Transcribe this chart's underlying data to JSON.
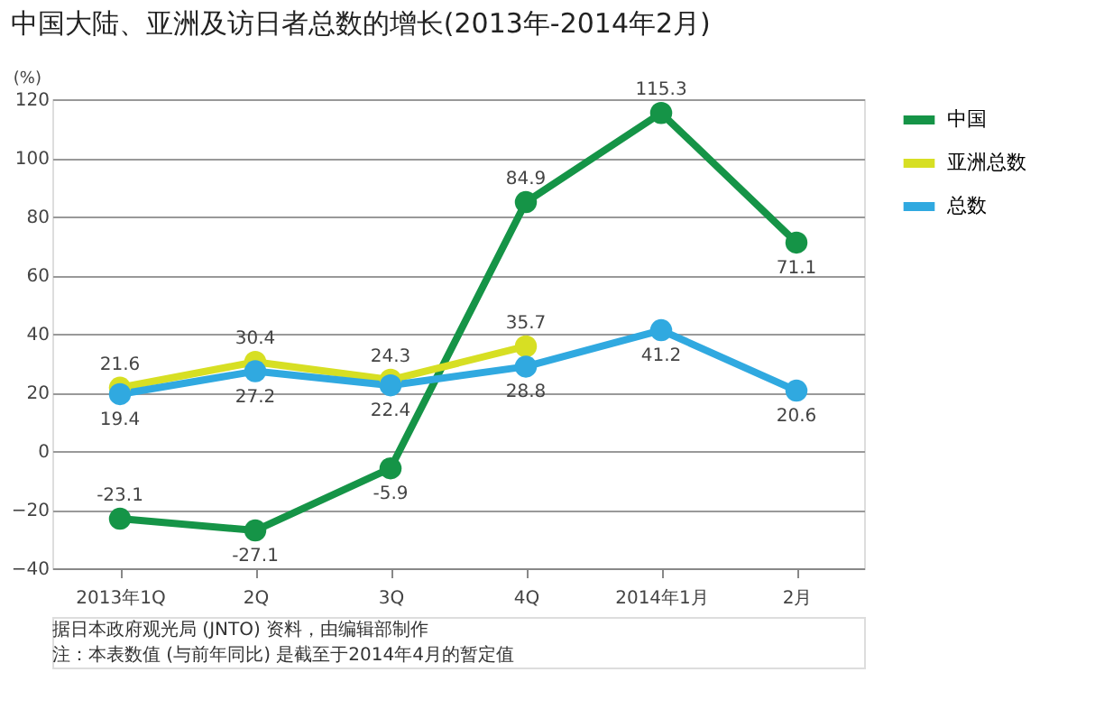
{
  "chart_data": {
    "type": "line",
    "title": "中国大陆、亚洲及访日者总数的增长(2013年-2014年2月)",
    "ylabel": "(%)",
    "categories": [
      "2013年1Q",
      "2Q",
      "3Q",
      "4Q",
      "2014年1月",
      "2月"
    ],
    "series": [
      {
        "name": "中国",
        "color": "#159447",
        "values": [
          -23.1,
          -27.1,
          -5.9,
          84.9,
          115.3,
          71.1
        ]
      },
      {
        "name": "亚洲总数",
        "color": "#d7df23",
        "values": [
          21.6,
          30.4,
          24.3,
          35.7,
          null,
          null
        ]
      },
      {
        "name": "总数",
        "color": "#30a9e0",
        "values": [
          19.4,
          27.2,
          22.4,
          28.8,
          41.2,
          20.6
        ]
      }
    ],
    "ylim": [
      -40,
      120
    ],
    "yticks": [
      -40,
      -20,
      0,
      20,
      40,
      60,
      80,
      100,
      120
    ],
    "grid": "y",
    "legend": "top right",
    "marker": "circle",
    "line_style": "solid",
    "data_labels": true,
    "annotations": [
      "据日本政府观光局 (JNTO) 资料，由编辑部制作",
      "注：本表数值 (与前年同比) 是截至于2014年4月的暂定值"
    ]
  }
}
